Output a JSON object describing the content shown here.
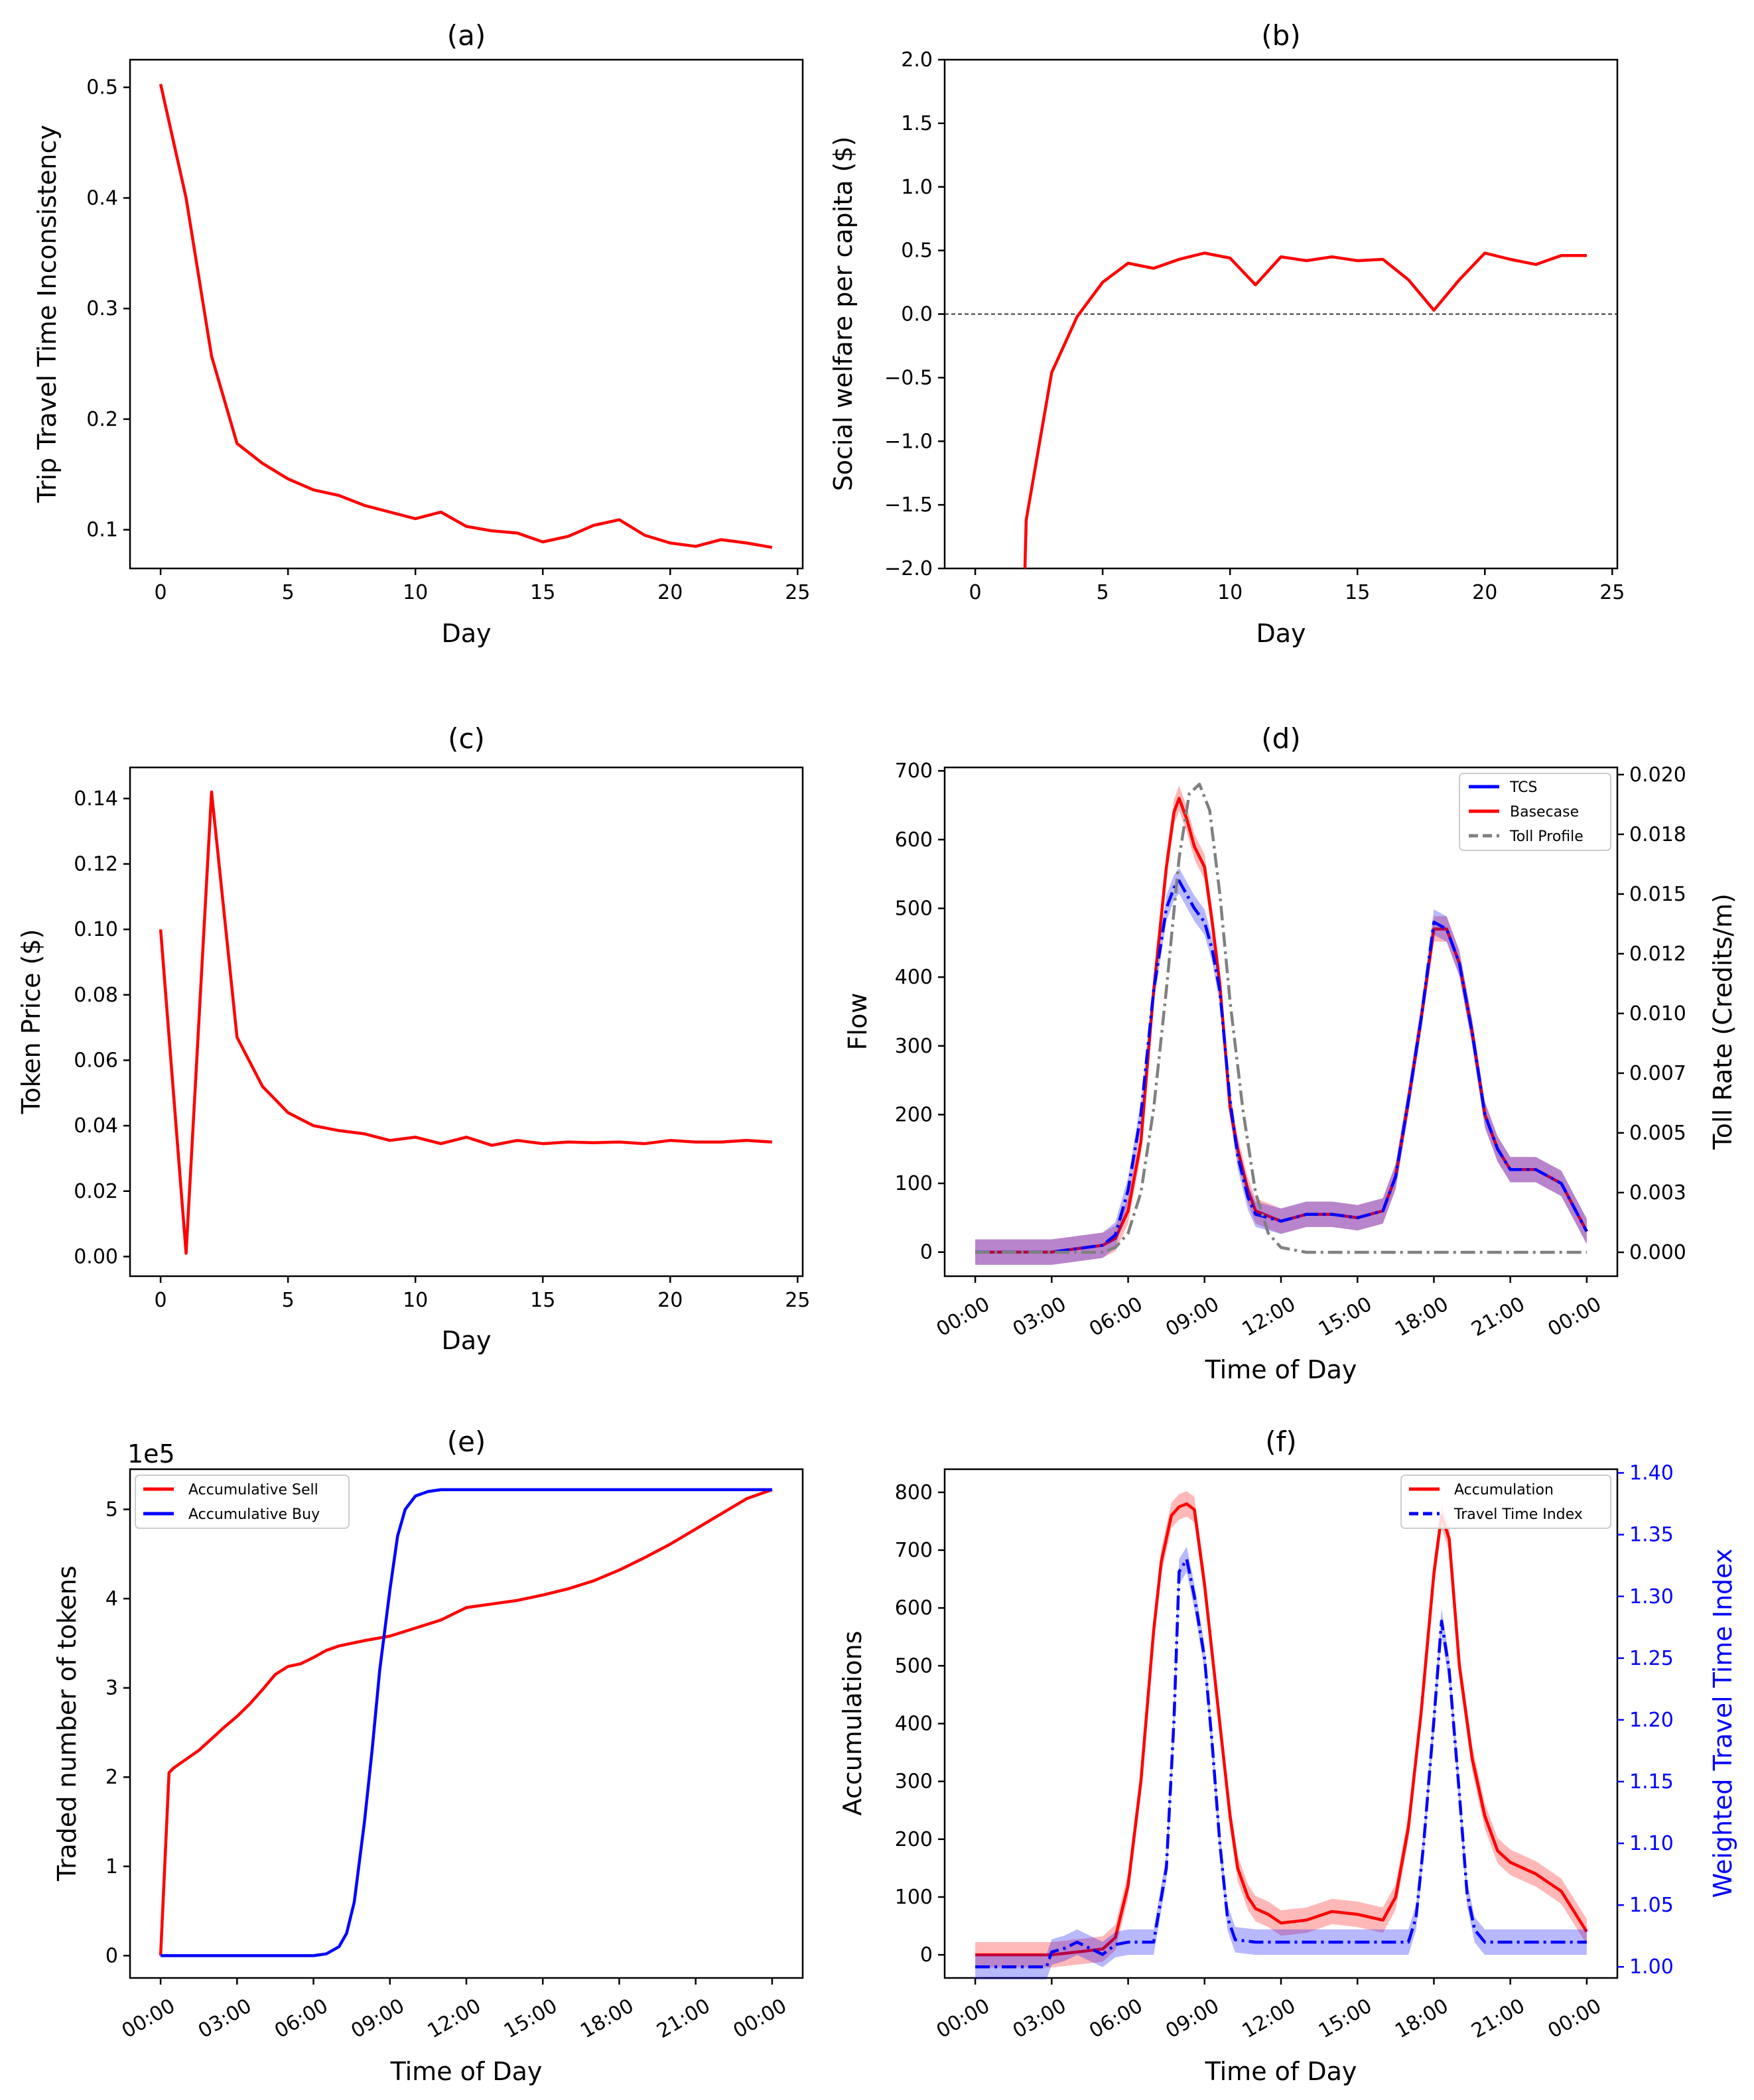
{
  "chart_data": [
    {
      "id": "a",
      "type": "line",
      "title": "(a)",
      "xlabel": "Day",
      "ylabel": "Trip Travel Time Inconsistency",
      "xlim": [
        -1.2,
        25.2
      ],
      "ylim": [
        0.065,
        0.525
      ],
      "xticks": [
        0,
        5,
        10,
        15,
        20,
        25
      ],
      "xtick_labels": [
        "0",
        "5",
        "10",
        "15",
        "20",
        "25"
      ],
      "yticks": [
        0.1,
        0.2,
        0.3,
        0.4,
        0.5
      ],
      "ytick_labels": [
        "0.1",
        "0.2",
        "0.3",
        "0.4",
        "0.5"
      ],
      "series": [
        {
          "name": "inconsistency",
          "color": "#ff0000",
          "x": [
            0,
            1,
            2,
            3,
            4,
            5,
            6,
            7,
            8,
            9,
            10,
            11,
            12,
            13,
            14,
            15,
            16,
            17,
            18,
            19,
            20,
            21,
            22,
            23,
            24
          ],
          "y": [
            0.503,
            0.4,
            0.257,
            0.178,
            0.16,
            0.146,
            0.136,
            0.131,
            0.122,
            0.116,
            0.11,
            0.116,
            0.103,
            0.099,
            0.097,
            0.089,
            0.094,
            0.104,
            0.109,
            0.095,
            0.088,
            0.085,
            0.091,
            0.088,
            0.084
          ]
        }
      ]
    },
    {
      "id": "b",
      "type": "line",
      "title": "(b)",
      "xlabel": "Day",
      "ylabel": "Social welfare per capita ($)",
      "xlim": [
        -1.2,
        25.2
      ],
      "ylim": [
        -2.0,
        2.0
      ],
      "xticks": [
        0,
        5,
        10,
        15,
        20,
        25
      ],
      "xtick_labels": [
        "0",
        "5",
        "10",
        "15",
        "20",
        "25"
      ],
      "yticks": [
        -2.0,
        -1.5,
        -1.0,
        -0.5,
        0.0,
        0.5,
        1.0,
        1.5,
        2.0
      ],
      "ytick_labels": [
        "−2.0",
        "−1.5",
        "−1.0",
        "−0.5",
        "0.0",
        "0.5",
        "1.0",
        "1.5",
        "2.0"
      ],
      "hline": 0.0,
      "series": [
        {
          "name": "welfare",
          "color": "#ff0000",
          "x": [
            1.95,
            2,
            3,
            4,
            5,
            6,
            7,
            8,
            9,
            10,
            11,
            12,
            13,
            14,
            15,
            16,
            17,
            18,
            19,
            20,
            21,
            22,
            23,
            24
          ],
          "y": [
            -2.0,
            -1.62,
            -0.46,
            -0.02,
            0.25,
            0.4,
            0.36,
            0.43,
            0.48,
            0.44,
            0.23,
            0.45,
            0.42,
            0.45,
            0.42,
            0.43,
            0.27,
            0.03,
            0.27,
            0.48,
            0.43,
            0.39,
            0.46,
            0.46
          ]
        }
      ]
    },
    {
      "id": "c",
      "type": "line",
      "title": "(c)",
      "xlabel": "Day",
      "ylabel": "Token Price ($)",
      "xlim": [
        -1.2,
        25.2
      ],
      "ylim": [
        -0.006,
        0.1495
      ],
      "xticks": [
        0,
        5,
        10,
        15,
        20,
        25
      ],
      "xtick_labels": [
        "0",
        "5",
        "10",
        "15",
        "20",
        "25"
      ],
      "yticks": [
        0.0,
        0.02,
        0.04,
        0.06,
        0.08,
        0.1,
        0.12,
        0.14
      ],
      "ytick_labels": [
        "0.00",
        "0.02",
        "0.04",
        "0.06",
        "0.08",
        "0.10",
        "0.12",
        "0.14"
      ],
      "series": [
        {
          "name": "price",
          "color": "#ff0000",
          "x": [
            0,
            1,
            2,
            3,
            4,
            5,
            6,
            7,
            8,
            9,
            10,
            11,
            12,
            13,
            14,
            15,
            16,
            17,
            18,
            19,
            20,
            21,
            22,
            23,
            24
          ],
          "y": [
            0.1,
            0.001,
            0.142,
            0.067,
            0.052,
            0.044,
            0.04,
            0.0385,
            0.0375,
            0.0355,
            0.0365,
            0.0345,
            0.0365,
            0.034,
            0.0355,
            0.0345,
            0.035,
            0.0348,
            0.035,
            0.0345,
            0.0355,
            0.035,
            0.035,
            0.0355,
            0.035
          ]
        }
      ]
    },
    {
      "id": "d",
      "type": "line",
      "title": "(d)",
      "xlabel": "Time of Day",
      "ylabel": "Flow",
      "ylabel_right": "Toll Rate (Credits/m)",
      "xlim": [
        -1.2,
        25.2
      ],
      "ylim": [
        -35,
        705
      ],
      "ylim_right": [
        -0.001,
        0.0203
      ],
      "xticks": [
        0,
        3,
        6,
        9,
        12,
        15,
        18,
        21,
        24
      ],
      "xtick_labels": [
        "00:00",
        "03:00",
        "06:00",
        "09:00",
        "12:00",
        "15:00",
        "18:00",
        "21:00",
        "00:00"
      ],
      "yticks": [
        0,
        100,
        200,
        300,
        400,
        500,
        600,
        700
      ],
      "ytick_labels": [
        "0",
        "100",
        "200",
        "300",
        "400",
        "500",
        "600",
        "700"
      ],
      "yticks_right": [
        0.0,
        0.0025,
        0.005,
        0.0075,
        0.01,
        0.0125,
        0.015,
        0.0175,
        0.02
      ],
      "ytick_labels_right": [
        "0.000",
        "0.003",
        "0.005",
        "0.007",
        "0.010",
        "0.012",
        "0.015",
        "0.018",
        "0.020"
      ],
      "legend": [
        {
          "label": "TCS",
          "color": "#0000ff",
          "dash": "solid"
        },
        {
          "label": "Basecase",
          "color": "#ff0000",
          "dash": "solid"
        },
        {
          "label": "Toll Profile",
          "color": "#808080",
          "dash": "dashed"
        }
      ],
      "series": [
        {
          "name": "Basecase",
          "color": "#ff0000",
          "axis": "left",
          "band": true,
          "x": [
            0,
            3,
            4,
            5,
            5.5,
            6,
            6.5,
            7,
            7.5,
            7.8,
            8,
            8.3,
            8.6,
            9,
            9.3,
            9.6,
            10,
            10.3,
            10.7,
            11,
            12,
            13,
            14,
            15,
            16,
            16.5,
            17,
            17.5,
            18,
            18.5,
            19,
            19.5,
            20,
            20.5,
            21,
            22,
            23,
            24
          ],
          "y": [
            0,
            0,
            5,
            10,
            20,
            60,
            160,
            380,
            560,
            640,
            660,
            630,
            590,
            560,
            480,
            390,
            210,
            150,
            90,
            60,
            45,
            55,
            55,
            50,
            60,
            110,
            220,
            340,
            470,
            470,
            420,
            320,
            200,
            150,
            120,
            120,
            100,
            30
          ]
        },
        {
          "name": "TCS",
          "color": "#0000ff",
          "axis": "left",
          "band": true,
          "dash": "dashdot",
          "x": [
            0,
            3,
            4,
            5,
            5.5,
            6,
            6.5,
            7,
            7.5,
            7.8,
            8,
            8.3,
            8.6,
            9,
            9.3,
            9.6,
            10,
            10.3,
            10.7,
            11,
            12,
            13,
            14,
            15,
            16,
            16.5,
            17,
            17.5,
            18,
            18.5,
            19,
            19.5,
            20,
            20.5,
            21,
            22,
            23,
            24
          ],
          "y": [
            0,
            0,
            5,
            10,
            25,
            90,
            200,
            380,
            500,
            530,
            540,
            520,
            500,
            480,
            440,
            380,
            220,
            140,
            80,
            55,
            45,
            55,
            55,
            50,
            60,
            110,
            220,
            340,
            480,
            470,
            420,
            320,
            200,
            150,
            120,
            120,
            100,
            30
          ]
        },
        {
          "name": "Toll Profile",
          "color": "#808080",
          "axis": "right",
          "dash": "dashdot",
          "x": [
            0,
            5,
            5.5,
            6,
            6.5,
            7,
            7.5,
            8,
            8.4,
            8.8,
            9.2,
            9.6,
            10,
            10.5,
            11,
            11.5,
            12,
            13,
            24
          ],
          "y": [
            0,
            0,
            0.0002,
            0.0008,
            0.0025,
            0.006,
            0.011,
            0.0165,
            0.0192,
            0.0196,
            0.0185,
            0.015,
            0.0105,
            0.006,
            0.0025,
            0.0008,
            0.0002,
            0,
            0
          ]
        }
      ]
    },
    {
      "id": "e",
      "type": "line",
      "title": "(e)",
      "xlabel": "Time of Day",
      "ylabel": "Traded number of tokens",
      "offset_label": "1e5",
      "xlim": [
        -1.2,
        25.2
      ],
      "ylim": [
        -0.25,
        5.45
      ],
      "xticks": [
        0,
        3,
        6,
        9,
        12,
        15,
        18,
        21,
        24
      ],
      "xtick_labels": [
        "00:00",
        "03:00",
        "06:00",
        "09:00",
        "12:00",
        "15:00",
        "18:00",
        "21:00",
        "00:00"
      ],
      "yticks": [
        0,
        1,
        2,
        3,
        4,
        5
      ],
      "ytick_labels": [
        "0",
        "1",
        "2",
        "3",
        "4",
        "5"
      ],
      "legend": [
        {
          "label": "Accumulative Sell",
          "color": "#ff0000",
          "dash": "solid"
        },
        {
          "label": "Accumulative Buy",
          "color": "#0000ff",
          "dash": "solid"
        }
      ],
      "series": [
        {
          "name": "Accumulative Sell",
          "color": "#ff0000",
          "x": [
            0,
            0.33,
            0.5,
            1,
            1.5,
            2,
            2.5,
            3,
            3.5,
            4,
            4.5,
            5,
            5.5,
            6,
            6.5,
            7,
            8,
            9,
            10,
            11,
            12,
            13,
            14,
            15,
            16,
            17,
            18,
            19,
            20,
            21,
            22,
            23,
            24
          ],
          "y": [
            0,
            2.05,
            2.1,
            2.2,
            2.3,
            2.43,
            2.56,
            2.68,
            2.82,
            2.98,
            3.15,
            3.24,
            3.27,
            3.34,
            3.42,
            3.47,
            3.53,
            3.58,
            3.67,
            3.76,
            3.9,
            3.94,
            3.98,
            4.04,
            4.11,
            4.2,
            4.32,
            4.46,
            4.61,
            4.78,
            4.95,
            5.12,
            5.22
          ]
        },
        {
          "name": "Accumulative Buy",
          "color": "#0000ff",
          "x": [
            0,
            6,
            6.5,
            7,
            7.3,
            7.6,
            8,
            8.3,
            8.6,
            9,
            9.3,
            9.6,
            10,
            10.5,
            11,
            12,
            24
          ],
          "y": [
            0,
            0,
            0.02,
            0.1,
            0.25,
            0.6,
            1.5,
            2.3,
            3.2,
            4.1,
            4.7,
            5.0,
            5.15,
            5.2,
            5.22,
            5.22,
            5.22
          ]
        }
      ]
    },
    {
      "id": "f",
      "type": "line",
      "title": "(f)",
      "xlabel": "Time of Day",
      "ylabel": "Accumulations",
      "ylabel_right": "Weighted Travel Time Index",
      "xlim": [
        -1.2,
        25.2
      ],
      "ylim": [
        -40,
        840
      ],
      "ylim_right": [
        0.991,
        1.403
      ],
      "xticks": [
        0,
        3,
        6,
        9,
        12,
        15,
        18,
        21,
        24
      ],
      "xtick_labels": [
        "00:00",
        "03:00",
        "06:00",
        "09:00",
        "12:00",
        "15:00",
        "18:00",
        "21:00",
        "00:00"
      ],
      "yticks": [
        0,
        100,
        200,
        300,
        400,
        500,
        600,
        700,
        800
      ],
      "ytick_labels": [
        "0",
        "100",
        "200",
        "300",
        "400",
        "500",
        "600",
        "700",
        "800"
      ],
      "yticks_right": [
        1.0,
        1.05,
        1.1,
        1.15,
        1.2,
        1.25,
        1.3,
        1.35,
        1.4
      ],
      "ytick_labels_right": [
        "1.00",
        "1.05",
        "1.10",
        "1.15",
        "1.20",
        "1.25",
        "1.30",
        "1.35",
        "1.40"
      ],
      "right_color": "#0000ff",
      "legend": [
        {
          "label": "Accumulation",
          "color": "#ff0000",
          "dash": "solid"
        },
        {
          "label": "Travel Time Index",
          "color": "#0000ff",
          "dash": "dashed"
        }
      ],
      "series": [
        {
          "name": "Accumulation",
          "color": "#ff0000",
          "axis": "left",
          "band": true,
          "x": [
            0,
            3,
            4,
            5,
            5.5,
            6,
            6.5,
            7,
            7.3,
            7.7,
            8,
            8.3,
            8.6,
            9,
            9.3,
            9.6,
            10,
            10.3,
            10.7,
            11,
            11.5,
            12,
            13,
            14,
            15,
            16,
            16.5,
            17,
            17.5,
            18,
            18.3,
            18.6,
            19,
            19.5,
            20,
            20.5,
            21,
            21.5,
            22,
            23,
            24
          ],
          "y": [
            0,
            0,
            5,
            10,
            30,
            120,
            300,
            560,
            680,
            760,
            775,
            780,
            770,
            640,
            520,
            400,
            240,
            150,
            100,
            80,
            70,
            55,
            60,
            75,
            70,
            60,
            100,
            220,
            420,
            660,
            760,
            720,
            500,
            340,
            240,
            180,
            160,
            150,
            140,
            110,
            40
          ]
        },
        {
          "name": "Travel Time Index",
          "color": "#0000ff",
          "axis": "right",
          "band": true,
          "dash": "dashdot",
          "x": [
            0,
            2.8,
            3,
            3.5,
            4,
            4.5,
            5,
            5.5,
            6,
            6.5,
            7,
            7.5,
            7.8,
            8,
            8.3,
            8.6,
            9,
            9.3,
            9.6,
            9.9,
            10.2,
            11,
            12,
            13,
            14,
            15,
            16,
            16.5,
            17,
            17.3,
            17.6,
            18,
            18.3,
            18.6,
            19,
            19.3,
            19.6,
            20,
            21,
            22,
            23,
            24
          ],
          "y": [
            1.0,
            1.0,
            1.012,
            1.015,
            1.02,
            1.015,
            1.01,
            1.018,
            1.02,
            1.02,
            1.02,
            1.08,
            1.2,
            1.32,
            1.33,
            1.3,
            1.25,
            1.18,
            1.1,
            1.04,
            1.022,
            1.02,
            1.02,
            1.02,
            1.02,
            1.02,
            1.02,
            1.02,
            1.02,
            1.04,
            1.1,
            1.2,
            1.28,
            1.24,
            1.14,
            1.06,
            1.03,
            1.02,
            1.02,
            1.02,
            1.02,
            1.02
          ]
        }
      ]
    }
  ]
}
